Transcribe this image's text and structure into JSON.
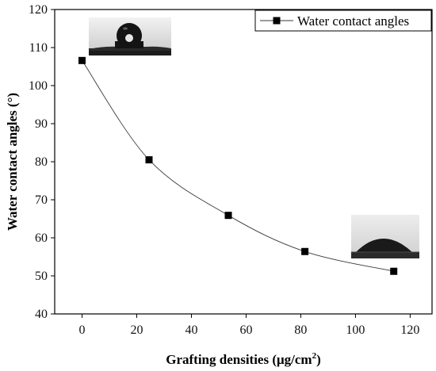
{
  "chart_data": {
    "type": "line",
    "title": "",
    "xlabel": "Grafting densities (μg/cm",
    "xlabel_sup": "2",
    "xlabel_end": ")",
    "ylabel": "Water contact angles (°)",
    "xlim": [
      -10,
      128
    ],
    "ylim": [
      40,
      120
    ],
    "xticks": [
      0,
      20,
      40,
      60,
      80,
      100,
      120
    ],
    "xtick_labels": [
      "0",
      "20",
      "40",
      "60",
      "80",
      "100",
      "120"
    ],
    "yticks": [
      40,
      50,
      60,
      70,
      80,
      90,
      100,
      110,
      120
    ],
    "ytick_labels": [
      "40",
      "50",
      "60",
      "70",
      "80",
      "90",
      "100",
      "110",
      "120"
    ],
    "grid": false,
    "legend_position": "top-right",
    "series": [
      {
        "name": "Water contact angles",
        "marker": "square",
        "color": "#000000",
        "x": [
          0,
          24.5,
          53.5,
          81.5,
          114
        ],
        "y": [
          106.6,
          80.5,
          65.9,
          56.4,
          51.2
        ]
      }
    ],
    "insets": [
      {
        "depicts": "water droplet with high contact angle",
        "near_point": 0
      },
      {
        "depicts": "water droplet with low contact angle",
        "near_point": 4
      }
    ]
  }
}
